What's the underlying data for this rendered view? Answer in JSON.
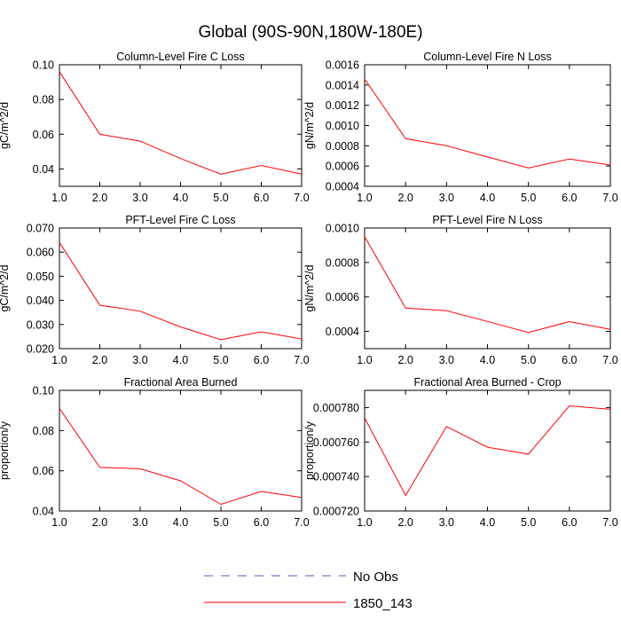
{
  "figure": {
    "title": "Global (90S-90N,180W-180E)",
    "legend": [
      {
        "label": "No Obs",
        "style": "dashed",
        "color": "#5555bb"
      },
      {
        "label": "1850_143",
        "style": "solid",
        "color": "#ff0000"
      }
    ]
  },
  "chart_data": [
    {
      "type": "line",
      "title": "Column-Level Fire C Loss",
      "ylabel": "gC/m^2/d",
      "xlabel": "",
      "xlim": [
        1,
        7
      ],
      "ylim": [
        0.03,
        0.1
      ],
      "xticks": [
        "1.0",
        "2.0",
        "3.0",
        "4.0",
        "5.0",
        "6.0",
        "7.0"
      ],
      "yticks": [
        {
          "v": 0.04,
          "label": "0.04"
        },
        {
          "v": 0.06,
          "label": "0.06"
        },
        {
          "v": 0.08,
          "label": "0.08"
        },
        {
          "v": 0.1,
          "label": "0.10"
        }
      ],
      "series": [
        {
          "name": "1850_143",
          "color": "#ff0000",
          "x": [
            1,
            2,
            3,
            4,
            5,
            6,
            7
          ],
          "values": [
            0.096,
            0.06,
            0.056,
            0.046,
            0.037,
            0.042,
            0.037
          ]
        }
      ]
    },
    {
      "type": "line",
      "title": "Column-Level Fire N Loss",
      "ylabel": "gN/m^2/d",
      "xlabel": "",
      "xlim": [
        1,
        7
      ],
      "ylim": [
        0.0004,
        0.0016
      ],
      "xticks": [
        "1.0",
        "2.0",
        "3.0",
        "4.0",
        "5.0",
        "6.0",
        "7.0"
      ],
      "yticks": [
        {
          "v": 0.0004,
          "label": "0.0004"
        },
        {
          "v": 0.0006,
          "label": "0.0006"
        },
        {
          "v": 0.0008,
          "label": "0.0008"
        },
        {
          "v": 0.001,
          "label": "0.0010"
        },
        {
          "v": 0.0012,
          "label": "0.0012"
        },
        {
          "v": 0.0014,
          "label": "0.0014"
        },
        {
          "v": 0.0016,
          "label": "0.0016"
        }
      ],
      "series": [
        {
          "name": "1850_143",
          "color": "#ff0000",
          "x": [
            1,
            2,
            3,
            4,
            5,
            6,
            7
          ],
          "values": [
            0.00146,
            0.00087,
            0.0008,
            0.00069,
            0.00058,
            0.00067,
            0.00061
          ]
        }
      ]
    },
    {
      "type": "line",
      "title": "PFT-Level Fire C Loss",
      "ylabel": "gC/m^2/d",
      "xlabel": "",
      "xlim": [
        1,
        7
      ],
      "ylim": [
        0.02,
        0.07
      ],
      "xticks": [
        "1.0",
        "2.0",
        "3.0",
        "4.0",
        "5.0",
        "6.0",
        "7.0"
      ],
      "yticks": [
        {
          "v": 0.02,
          "label": "0.020"
        },
        {
          "v": 0.03,
          "label": "0.030"
        },
        {
          "v": 0.04,
          "label": "0.040"
        },
        {
          "v": 0.05,
          "label": "0.050"
        },
        {
          "v": 0.06,
          "label": "0.060"
        },
        {
          "v": 0.07,
          "label": "0.070"
        }
      ],
      "series": [
        {
          "name": "1850_143",
          "color": "#ff0000",
          "x": [
            1,
            2,
            3,
            4,
            5,
            6,
            7
          ],
          "values": [
            0.064,
            0.038,
            0.0355,
            0.029,
            0.0237,
            0.027,
            0.024
          ]
        }
      ]
    },
    {
      "type": "line",
      "title": "PFT-Level Fire N Loss",
      "ylabel": "gN/m^2/d",
      "xlabel": "",
      "xlim": [
        1,
        7
      ],
      "ylim": [
        0.0003,
        0.001
      ],
      "xticks": [
        "1.0",
        "2.0",
        "3.0",
        "4.0",
        "5.0",
        "6.0",
        "7.0"
      ],
      "yticks": [
        {
          "v": 0.0004,
          "label": "0.0004"
        },
        {
          "v": 0.0006,
          "label": "0.0006"
        },
        {
          "v": 0.0008,
          "label": "0.0008"
        },
        {
          "v": 0.001,
          "label": "0.0010"
        }
      ],
      "series": [
        {
          "name": "1850_143",
          "color": "#ff0000",
          "x": [
            1,
            2,
            3,
            4,
            5,
            6,
            7
          ],
          "values": [
            0.00095,
            0.000535,
            0.00052,
            0.000458,
            0.000393,
            0.000457,
            0.000412
          ]
        }
      ]
    },
    {
      "type": "line",
      "title": "Fractional Area Burned",
      "ylabel": "proportion/y",
      "xlabel": "",
      "xlim": [
        1,
        7
      ],
      "ylim": [
        0.04,
        0.1
      ],
      "xticks": [
        "1.0",
        "2.0",
        "3.0",
        "4.0",
        "5.0",
        "6.0",
        "7.0"
      ],
      "yticks": [
        {
          "v": 0.04,
          "label": "0.04"
        },
        {
          "v": 0.06,
          "label": "0.06"
        },
        {
          "v": 0.08,
          "label": "0.08"
        },
        {
          "v": 0.1,
          "label": "0.10"
        }
      ],
      "series": [
        {
          "name": "1850_143",
          "color": "#ff0000",
          "x": [
            1,
            2,
            3,
            4,
            5,
            6,
            7
          ],
          "values": [
            0.091,
            0.0617,
            0.061,
            0.055,
            0.0433,
            0.0497,
            0.0467
          ]
        }
      ]
    },
    {
      "type": "line",
      "title": "Fractional Area Burned - Crop",
      "ylabel": "proportion/y",
      "xlabel": "",
      "xlim": [
        1,
        7
      ],
      "ylim": [
        0.00072,
        0.00079
      ],
      "xticks": [
        "1.0",
        "2.0",
        "3.0",
        "4.0",
        "5.0",
        "6.0",
        "7.0"
      ],
      "yticks": [
        {
          "v": 0.00072,
          "label": "0.000720"
        },
        {
          "v": 0.00074,
          "label": "0.000740"
        },
        {
          "v": 0.00076,
          "label": "0.000760"
        },
        {
          "v": 0.00078,
          "label": "0.000780"
        }
      ],
      "series": [
        {
          "name": "1850_143",
          "color": "#ff0000",
          "x": [
            1,
            2,
            3,
            4,
            5,
            6,
            7
          ],
          "values": [
            0.000774,
            0.000729,
            0.000769,
            0.000757,
            0.000753,
            0.000781,
            0.000779
          ]
        }
      ]
    }
  ]
}
